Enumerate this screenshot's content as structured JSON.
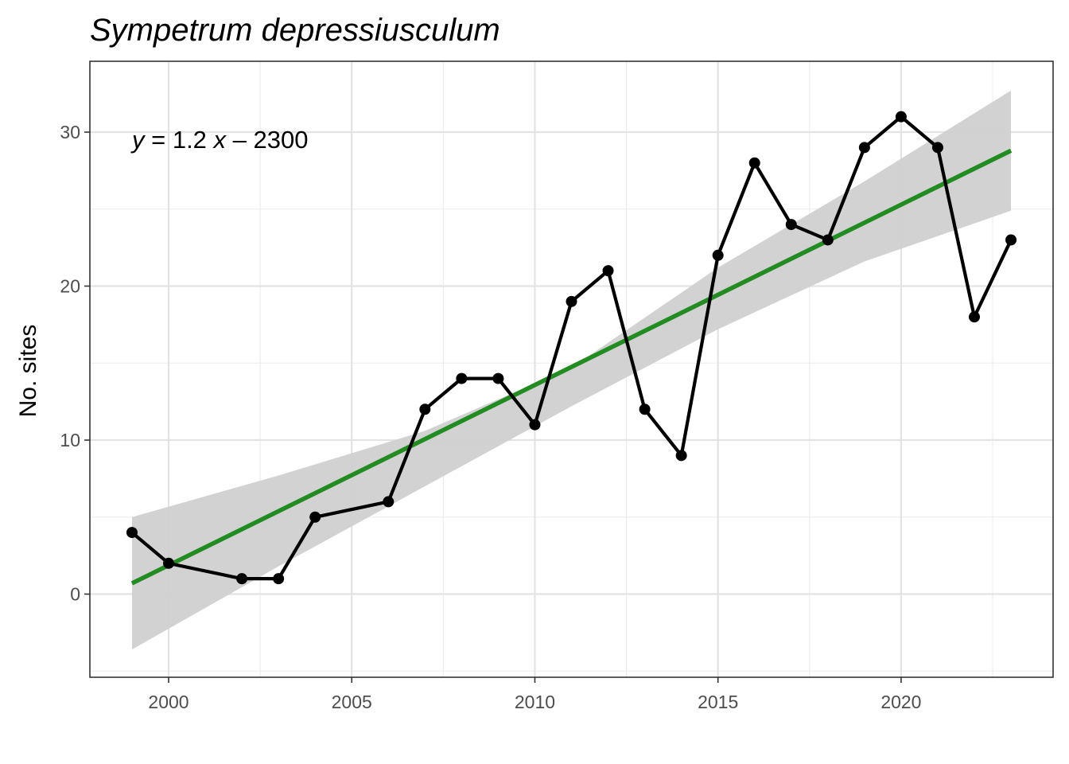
{
  "chart_data": {
    "type": "line",
    "title": "Sympetrum depressiusculum",
    "xlabel": "",
    "ylabel": "No. sites",
    "xlim": [
      1997.85,
      2024.15
    ],
    "ylim": [
      -5.4,
      34.6
    ],
    "x_ticks": [
      2000,
      2005,
      2010,
      2015,
      2020
    ],
    "y_ticks": [
      0,
      10,
      20,
      30
    ],
    "grid": true,
    "series": [
      {
        "x": [
          1999,
          2000,
          2002,
          2003,
          2004,
          2006,
          2007,
          2008,
          2009,
          2010,
          2011,
          2012,
          2013,
          2014,
          2015,
          2016,
          2017,
          2018,
          2019,
          2020,
          2021,
          2022,
          2023
        ],
        "y": [
          4,
          2,
          1,
          1,
          5,
          6,
          12,
          14,
          14,
          11,
          19,
          21,
          12,
          9,
          22,
          28,
          24,
          23,
          29,
          31,
          29,
          18,
          23
        ],
        "color": "#000000"
      }
    ],
    "regression": {
      "equation": {
        "y": "y",
        "equals": " = 1.2 ",
        "x": "x",
        "rest": " – 2300"
      },
      "line": {
        "x": [
          1999,
          2023
        ],
        "y": [
          0.7,
          28.8
        ]
      },
      "confidence_band": {
        "x": [
          1999,
          2003,
          2007,
          2011,
          2015,
          2019,
          2023
        ],
        "lower": [
          -3.6,
          1.8,
          7.0,
          12.2,
          17.2,
          21.6,
          24.9
        ],
        "upper": [
          5.0,
          7.7,
          10.6,
          14.7,
          21.2,
          26.8,
          32.7
        ]
      },
      "line_color": "#228B22",
      "band_color": "#D0D0D0"
    }
  }
}
